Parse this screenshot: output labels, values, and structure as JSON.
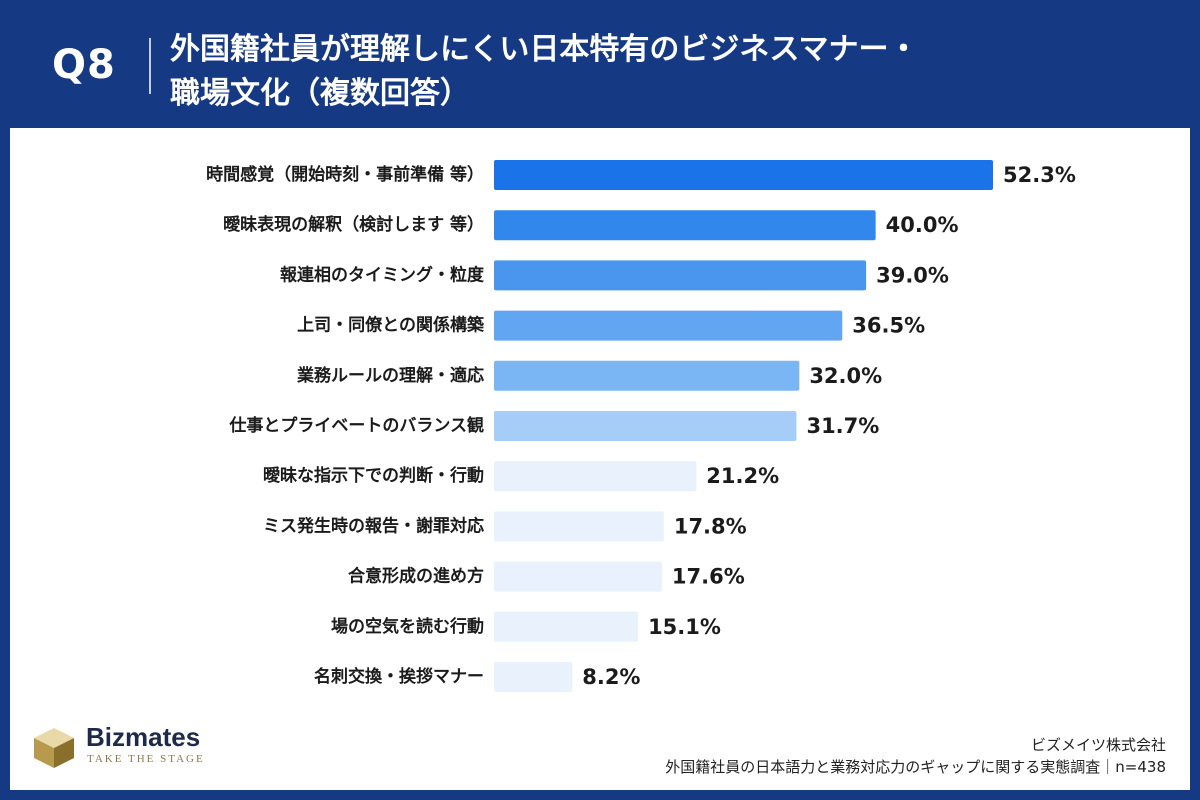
{
  "header": {
    "question_number": "Q8",
    "title_line1": "外国籍社員が理解しにくい日本特有のビジネスマナー・",
    "title_line2": "職場文化（複数回答）"
  },
  "chart_data": {
    "type": "bar",
    "orientation": "horizontal",
    "title": "外国籍社員が理解しにくい日本特有のビジネスマナー・職場文化（複数回答）",
    "unit": "%",
    "categories": [
      "時間感覚（開始時刻・事前準備 等）",
      "曖昧表現の解釈（検討します 等）",
      "報連相のタイミング・粒度",
      "上司・同僚との関係構築",
      "業務ルールの理解・適応",
      "仕事とプライベートのバランス観",
      "曖昧な指示下での判断・行動",
      "ミス発生時の報告・謝罪対応",
      "合意形成の進め方",
      "場の空気を読む行動",
      "名刺交換・挨拶マナー"
    ],
    "values": [
      52.3,
      40.0,
      39.0,
      36.5,
      32.0,
      31.7,
      21.2,
      17.8,
      17.6,
      15.1,
      8.2
    ],
    "value_labels": [
      "52.3%",
      "40.0%",
      "39.0%",
      "36.5%",
      "32.0%",
      "31.7%",
      "21.2%",
      "17.8%",
      "17.6%",
      "15.1%",
      "8.2%"
    ],
    "bar_colors": [
      "#1a73e8",
      "#3287ec",
      "#4a96ee",
      "#62a5f0",
      "#7ab6f4",
      "#a6cdf7",
      "#e8f1fc",
      "#e8f1fc",
      "#e8f1fc",
      "#e8f1fc",
      "#e8f1fc"
    ],
    "xlim": [
      0,
      52.3
    ],
    "grid": false,
    "legend": "none"
  },
  "footer": {
    "logo_name": "Bizmates",
    "logo_tagline": "TAKE THE STAGE",
    "company": "ビズメイツ株式会社",
    "survey": "外国籍社員の日本語力と業務対応力のギャップに関する実態調査｜n=438"
  }
}
